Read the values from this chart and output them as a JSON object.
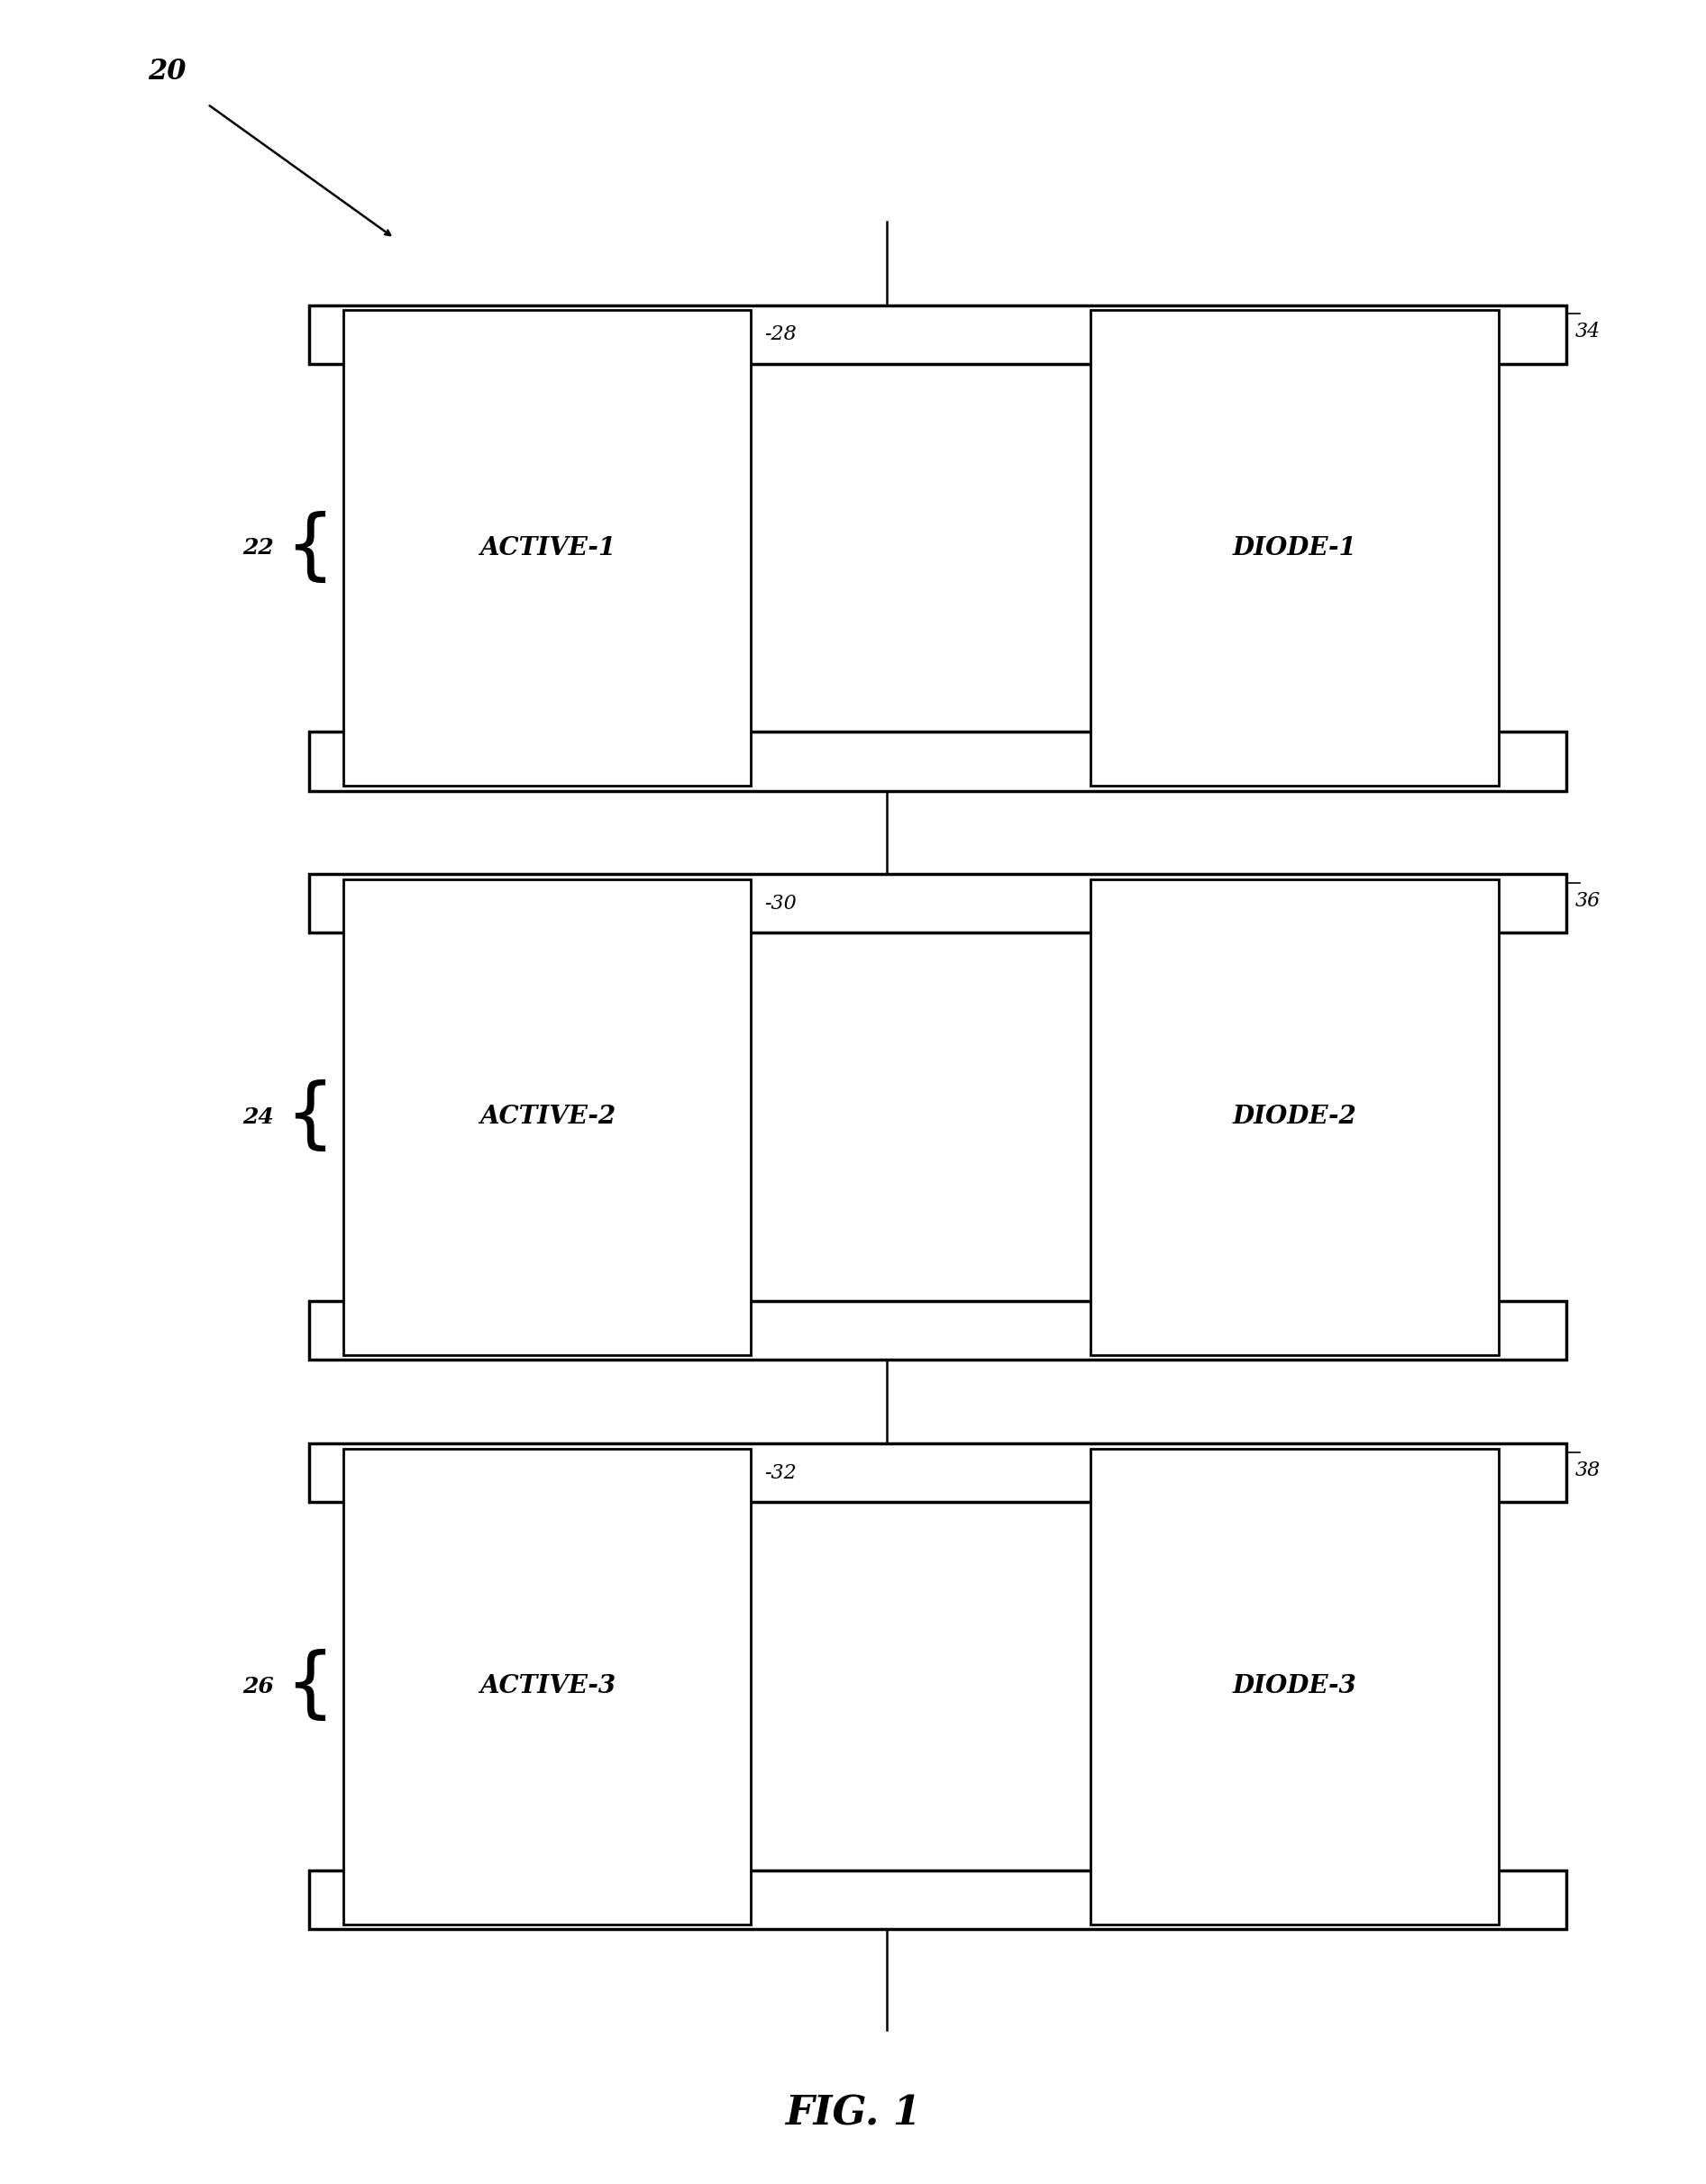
{
  "bg_color": "#ffffff",
  "fig_width": 18.93,
  "fig_height": 24.24,
  "title": "FIG. 1",
  "rows": [
    {
      "active_label": "ACTIVE-1",
      "active_num": "-28",
      "diode_label": "DIODE-1",
      "diode_num": "34",
      "group_num": "22"
    },
    {
      "active_label": "ACTIVE-2",
      "active_num": "-30",
      "diode_label": "DIODE-2",
      "diode_num": "36",
      "group_num": "24"
    },
    {
      "active_label": "ACTIVE-3",
      "active_num": "-32",
      "diode_label": "DIODE-3",
      "diode_num": "38",
      "group_num": "26"
    }
  ],
  "label_20": "20",
  "wire_color": "#000000",
  "box_color": "#000000",
  "text_color": "#000000"
}
